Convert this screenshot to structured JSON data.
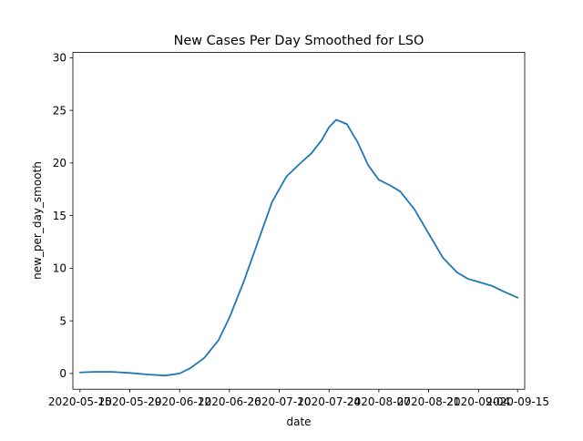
{
  "chart_data": {
    "type": "line",
    "title": "New Cases Per Day Smoothed for LSO",
    "xlabel": "date",
    "ylabel": "new_per_day_smooth",
    "xlim": [
      "2020-05-13",
      "2020-09-17"
    ],
    "ylim": [
      -1.5,
      30.5
    ],
    "grid": false,
    "legend": "none",
    "line_color": "#1f77b4",
    "x_ticks": [
      "2020-05-15",
      "2020-05-29",
      "2020-06-12",
      "2020-06-26",
      "2020-07-10",
      "2020-07-24",
      "2020-08-07",
      "2020-08-21",
      "2020-09-04",
      "2020-09-15"
    ],
    "x_tick_labels": [
      "2020-05-15",
      "2020-05-29",
      "2020-06-12",
      "2020-06-26",
      "2020-07-10",
      "2020-07-24",
      "2020-08-07",
      "2020-08-21",
      "2020-09-04",
      "2020-09-15"
    ],
    "y_ticks": [
      0,
      5,
      10,
      15,
      20,
      25,
      30
    ],
    "y_tick_labels": [
      "0",
      "5",
      "10",
      "15",
      "20",
      "25",
      "30"
    ],
    "series": [
      {
        "x": [
          "2020-05-15",
          "2020-05-19",
          "2020-05-24",
          "2020-05-29",
          "2020-06-03",
          "2020-06-08",
          "2020-06-12",
          "2020-06-15",
          "2020-06-19",
          "2020-06-23",
          "2020-06-26",
          "2020-06-30",
          "2020-07-04",
          "2020-07-08",
          "2020-07-12",
          "2020-07-16",
          "2020-07-19",
          "2020-07-22",
          "2020-07-24",
          "2020-07-26",
          "2020-07-29",
          "2020-08-01",
          "2020-08-04",
          "2020-08-07",
          "2020-08-10",
          "2020-08-13",
          "2020-08-17",
          "2020-08-21",
          "2020-08-25",
          "2020-08-29",
          "2020-09-01",
          "2020-09-04",
          "2020-09-08",
          "2020-09-11",
          "2020-09-15"
        ],
        "y": [
          0.1,
          0.15,
          0.15,
          0.05,
          -0.1,
          -0.2,
          0.0,
          0.5,
          1.5,
          3.2,
          5.3,
          8.7,
          12.5,
          16.3,
          18.7,
          20.0,
          20.9,
          22.2,
          23.4,
          24.1,
          23.7,
          22.0,
          19.8,
          18.4,
          17.9,
          17.3,
          15.6,
          13.3,
          11.0,
          9.6,
          9.0,
          8.7,
          8.3,
          7.8,
          7.2
        ]
      }
    ]
  }
}
